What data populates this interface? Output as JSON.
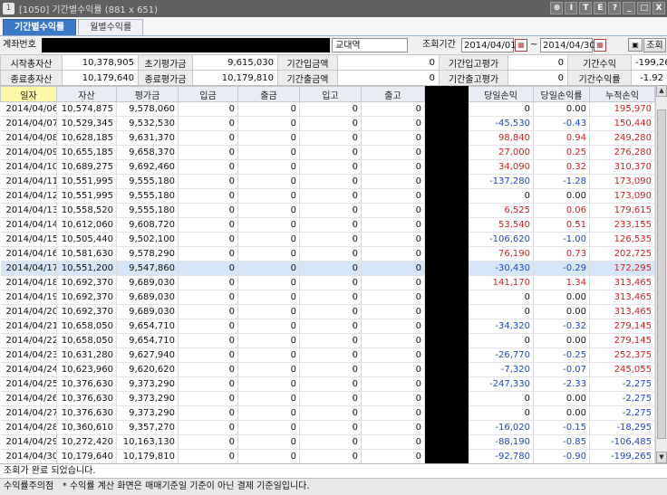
{
  "window": {
    "title": "[1050] 기간별수익률 (881 x 651)",
    "icon_label": "1",
    "controls": [
      "⊕",
      "I",
      "T",
      "E",
      "?",
      "_",
      "□",
      "X"
    ]
  },
  "tabs": [
    {
      "label": "기간별수익률",
      "active": true
    },
    {
      "label": "월별수익률",
      "active": false
    }
  ],
  "search": {
    "account_label": "계좌번호",
    "branch": "교대역",
    "period_label": "조회기간",
    "start_date": "2014/04/01",
    "separator": "~",
    "end_date": "2014/04/30",
    "calendar_icon": "calendar-icon",
    "export_icon": "export-icon",
    "query_button": "조회"
  },
  "summary": [
    [
      {
        "label": "시작총자산",
        "value": "10,378,905"
      },
      {
        "label": "초기평가금",
        "value": "9,615,030"
      },
      {
        "label": "기간입금액",
        "value": "0"
      },
      {
        "label": "기간입고평가",
        "value": "0"
      },
      {
        "label": "기간수익",
        "value": "-199,265"
      }
    ],
    [
      {
        "label": "종료총자산",
        "value": "10,179,640"
      },
      {
        "label": "종료평가금",
        "value": "10,179,810"
      },
      {
        "label": "기간출금액",
        "value": "0"
      },
      {
        "label": "기간출고평가",
        "value": "0"
      },
      {
        "label": "기간수익률",
        "value": "-1.92"
      }
    ]
  ],
  "grid": {
    "headers": [
      "일자",
      "자산",
      "평가금",
      "입금",
      "출금",
      "입고",
      "출고",
      "",
      "당일손익",
      "당일손익률",
      "누적손익"
    ],
    "selected_row": 11,
    "rows": [
      [
        "2014/04/06",
        "10,574,875",
        "9,578,060",
        "0",
        "0",
        "0",
        "0",
        "",
        "0",
        "0.00",
        "195,970"
      ],
      [
        "2014/04/07",
        "10,529,345",
        "9,532,530",
        "0",
        "0",
        "0",
        "0",
        "",
        "-45,530",
        "-0.43",
        "150,440"
      ],
      [
        "2014/04/08",
        "10,628,185",
        "9,631,370",
        "0",
        "0",
        "0",
        "0",
        "",
        "98,840",
        "0.94",
        "249,280"
      ],
      [
        "2014/04/09",
        "10,655,185",
        "9,658,370",
        "0",
        "0",
        "0",
        "0",
        "",
        "27,000",
        "0.25",
        "276,280"
      ],
      [
        "2014/04/10",
        "10,689,275",
        "9,692,460",
        "0",
        "0",
        "0",
        "0",
        "",
        "34,090",
        "0.32",
        "310,370"
      ],
      [
        "2014/04/11",
        "10,551,995",
        "9,555,180",
        "0",
        "0",
        "0",
        "0",
        "",
        "-137,280",
        "-1.28",
        "173,090"
      ],
      [
        "2014/04/12",
        "10,551,995",
        "9,555,180",
        "0",
        "0",
        "0",
        "0",
        "",
        "0",
        "0.00",
        "173,090"
      ],
      [
        "2014/04/13",
        "10,558,520",
        "9,555,180",
        "0",
        "0",
        "0",
        "0",
        "",
        "6,525",
        "0.06",
        "179,615"
      ],
      [
        "2014/04/14",
        "10,612,060",
        "9,608,720",
        "0",
        "0",
        "0",
        "0",
        "",
        "53,540",
        "0.51",
        "233,155"
      ],
      [
        "2014/04/15",
        "10,505,440",
        "9,502,100",
        "0",
        "0",
        "0",
        "0",
        "",
        "-106,620",
        "-1.00",
        "126,535"
      ],
      [
        "2014/04/16",
        "10,581,630",
        "9,578,290",
        "0",
        "0",
        "0",
        "0",
        "",
        "76,190",
        "0.73",
        "202,725"
      ],
      [
        "2014/04/17",
        "10,551,200",
        "9,547,860",
        "0",
        "0",
        "0",
        "0",
        "",
        "-30,430",
        "-0.29",
        "172,295"
      ],
      [
        "2014/04/18",
        "10,692,370",
        "9,689,030",
        "0",
        "0",
        "0",
        "0",
        "",
        "141,170",
        "1.34",
        "313,465"
      ],
      [
        "2014/04/19",
        "10,692,370",
        "9,689,030",
        "0",
        "0",
        "0",
        "0",
        "",
        "0",
        "0.00",
        "313,465"
      ],
      [
        "2014/04/20",
        "10,692,370",
        "9,689,030",
        "0",
        "0",
        "0",
        "0",
        "",
        "0",
        "0.00",
        "313,465"
      ],
      [
        "2014/04/21",
        "10,658,050",
        "9,654,710",
        "0",
        "0",
        "0",
        "0",
        "",
        "-34,320",
        "-0.32",
        "279,145"
      ],
      [
        "2014/04/22",
        "10,658,050",
        "9,654,710",
        "0",
        "0",
        "0",
        "0",
        "",
        "0",
        "0.00",
        "279,145"
      ],
      [
        "2014/04/23",
        "10,631,280",
        "9,627,940",
        "0",
        "0",
        "0",
        "0",
        "",
        "-26,770",
        "-0.25",
        "252,375"
      ],
      [
        "2014/04/24",
        "10,623,960",
        "9,620,620",
        "0",
        "0",
        "0",
        "0",
        "",
        "-7,320",
        "-0.07",
        "245,055"
      ],
      [
        "2014/04/25",
        "10,376,630",
        "9,373,290",
        "0",
        "0",
        "0",
        "0",
        "",
        "-247,330",
        "-2.33",
        "-2,275"
      ],
      [
        "2014/04/26",
        "10,376,630",
        "9,373,290",
        "0",
        "0",
        "0",
        "0",
        "",
        "0",
        "0.00",
        "-2,275"
      ],
      [
        "2014/04/27",
        "10,376,630",
        "9,373,290",
        "0",
        "0",
        "0",
        "0",
        "",
        "0",
        "0.00",
        "-2,275"
      ],
      [
        "2014/04/28",
        "10,360,610",
        "9,357,270",
        "0",
        "0",
        "0",
        "0",
        "",
        "-16,020",
        "-0.15",
        "-18,295"
      ],
      [
        "2014/04/29",
        "10,272,420",
        "10,163,130",
        "0",
        "0",
        "0",
        "0",
        "",
        "-88,190",
        "-0.85",
        "-106,485"
      ],
      [
        "2014/04/30",
        "10,179,640",
        "10,179,810",
        "0",
        "0",
        "0",
        "0",
        "",
        "-92,780",
        "-0.90",
        "-199,265"
      ]
    ]
  },
  "colors": {
    "positive": "#d21e1e",
    "negative": "#1e46c8",
    "tab_active": "#3c78c8",
    "titlebar": "#606060",
    "selected_row": "#d6e6f8",
    "date_header": "#fff7a8"
  },
  "status_message": "조회가 완료 되었습니다.",
  "notice": {
    "label": "수익률주의점",
    "text": "* 수익률 계산 화면은 매매기준일 기준이 아닌 결제 기준일입니다."
  }
}
